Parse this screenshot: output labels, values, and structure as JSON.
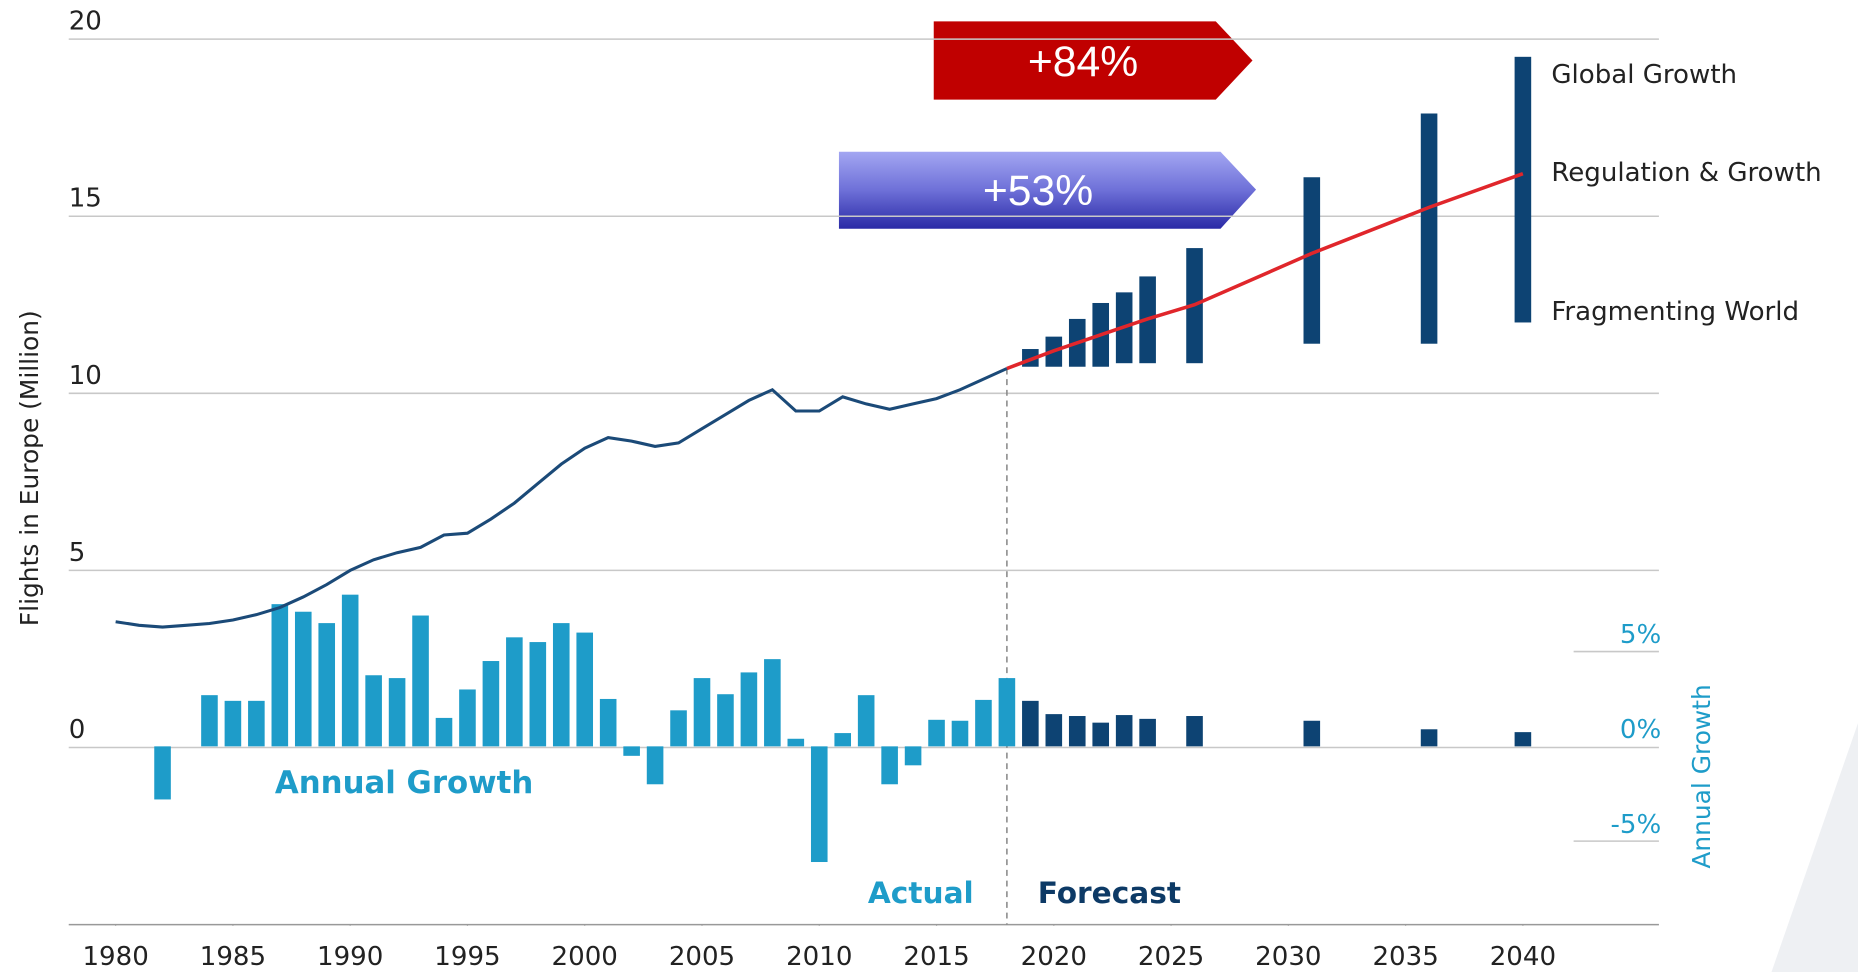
{
  "chart_data": {
    "type": "combo",
    "y_label": "Flights in Europe (Million)",
    "y2_label": "Annual Growth",
    "xlim": [
      1978,
      2045.8
    ],
    "xticks": [
      1980,
      1985,
      1990,
      1995,
      2000,
      2005,
      2010,
      2015,
      2020,
      2025,
      2030,
      2035,
      2040
    ],
    "ylim": [
      -5,
      20
    ],
    "yticks": [
      0,
      5,
      10,
      15,
      20
    ],
    "y2lim": [
      -9.4,
      37.3
    ],
    "y2ticks": [
      {
        "value": 5,
        "label": "5%"
      },
      {
        "value": 0,
        "label": "0%"
      },
      {
        "value": -5,
        "label": "-5%"
      }
    ],
    "grid": true,
    "forecast_start": 2018,
    "actual_label": "Actual",
    "forecast_label": "Forecast",
    "flights": {
      "color": "#1b4a78",
      "x": [
        1980,
        1981,
        1982,
        1983,
        1984,
        1985,
        1986,
        1987,
        1988,
        1989,
        1990,
        1991,
        1992,
        1993,
        1994,
        1995,
        1996,
        1997,
        1998,
        1999,
        2000,
        2001,
        2002,
        2003,
        2004,
        2005,
        2006,
        2007,
        2008,
        2009,
        2010,
        2011,
        2012,
        2013,
        2014,
        2015,
        2016,
        2017,
        2018
      ],
      "values": [
        3.55,
        3.45,
        3.4,
        3.45,
        3.5,
        3.6,
        3.75,
        3.95,
        4.25,
        4.6,
        5.0,
        5.3,
        5.5,
        5.65,
        6.0,
        6.05,
        6.45,
        6.9,
        7.45,
        8.0,
        8.45,
        8.75,
        8.65,
        8.5,
        8.6,
        9.0,
        9.4,
        9.8,
        10.1,
        9.5,
        9.5,
        9.9,
        9.7,
        9.55,
        9.7,
        9.85,
        10.1,
        10.4,
        10.7
      ]
    },
    "scenarios": {
      "color": "#0d4373",
      "x": [
        2019,
        2020,
        2021,
        2022,
        2023,
        2024,
        2026,
        2031,
        2036,
        2040
      ],
      "high": {
        "name": "Global Growth",
        "values": [
          11.25,
          11.6,
          12.1,
          12.55,
          12.85,
          13.3,
          14.1,
          16.1,
          17.9,
          19.5
        ]
      },
      "low": {
        "name": "Fragmenting World",
        "values": [
          10.75,
          10.75,
          10.75,
          10.75,
          10.85,
          10.85,
          10.85,
          11.4,
          11.4,
          12.0
        ]
      }
    },
    "base": {
      "name": "Regulation & Growth",
      "color": "#e0262b",
      "x": [
        2018,
        2020,
        2022,
        2024,
        2026,
        2031,
        2036,
        2040
      ],
      "values": [
        10.7,
        11.2,
        11.65,
        12.1,
        12.5,
        13.95,
        15.25,
        16.2
      ]
    },
    "growth": {
      "name": "Annual Growth",
      "axis": "y2",
      "color": "#1e9cc9",
      "forecast_color": "#0d4373",
      "x": [
        1982,
        1983,
        1984,
        1985,
        1986,
        1987,
        1988,
        1989,
        1990,
        1991,
        1992,
        1993,
        1994,
        1995,
        1996,
        1997,
        1998,
        1999,
        2000,
        2001,
        2002,
        2003,
        2004,
        2005,
        2006,
        2007,
        2008,
        2009,
        2010,
        2011,
        2012,
        2013,
        2014,
        2015,
        2016,
        2017,
        2018,
        2019,
        2020,
        2021,
        2022,
        2023,
        2024,
        2026,
        2031,
        2036,
        2040
      ],
      "values": [
        -2.8,
        0,
        2.7,
        2.4,
        2.4,
        7.5,
        7.1,
        6.5,
        8.0,
        3.75,
        3.6,
        6.9,
        1.5,
        3.0,
        4.5,
        5.75,
        5.5,
        6.5,
        6.0,
        2.5,
        -0.5,
        -2.0,
        1.9,
        3.6,
        2.75,
        3.9,
        4.6,
        0.4,
        -6.1,
        0.7,
        2.7,
        -2.0,
        -1.0,
        1.4,
        1.35,
        2.45,
        3.6,
        2.4,
        1.7,
        1.6,
        1.25,
        1.65,
        1.45,
        1.6,
        1.35,
        0.9,
        0.75
      ]
    },
    "annotations": [
      "+84%",
      "+53%"
    ]
  }
}
